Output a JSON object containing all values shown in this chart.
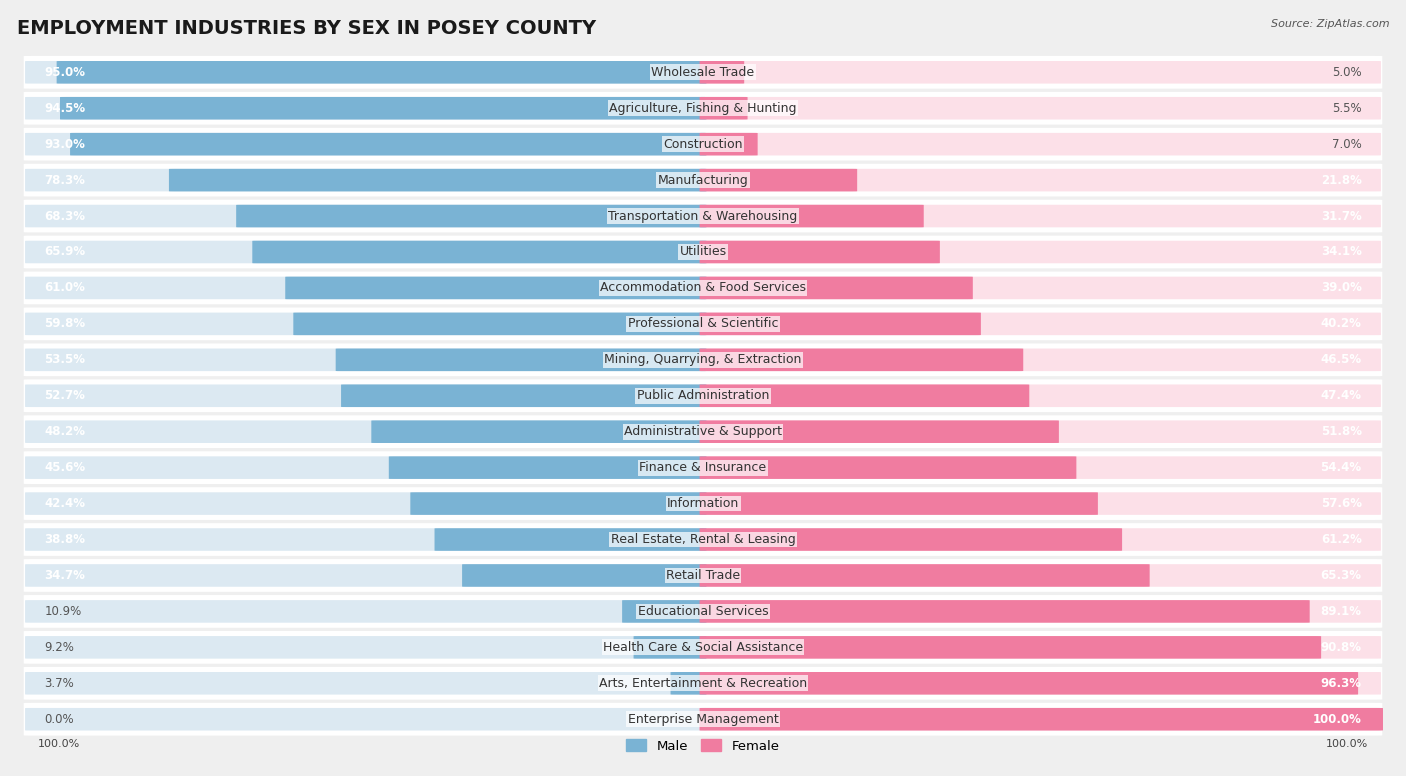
{
  "title": "EMPLOYMENT INDUSTRIES BY SEX IN POSEY COUNTY",
  "source": "Source: ZipAtlas.com",
  "industries": [
    {
      "name": "Wholesale Trade",
      "male": 95.0,
      "female": 5.0
    },
    {
      "name": "Agriculture, Fishing & Hunting",
      "male": 94.5,
      "female": 5.5
    },
    {
      "name": "Construction",
      "male": 93.0,
      "female": 7.0
    },
    {
      "name": "Manufacturing",
      "male": 78.3,
      "female": 21.8
    },
    {
      "name": "Transportation & Warehousing",
      "male": 68.3,
      "female": 31.7
    },
    {
      "name": "Utilities",
      "male": 65.9,
      "female": 34.1
    },
    {
      "name": "Accommodation & Food Services",
      "male": 61.0,
      "female": 39.0
    },
    {
      "name": "Professional & Scientific",
      "male": 59.8,
      "female": 40.2
    },
    {
      "name": "Mining, Quarrying, & Extraction",
      "male": 53.5,
      "female": 46.5
    },
    {
      "name": "Public Administration",
      "male": 52.7,
      "female": 47.4
    },
    {
      "name": "Administrative & Support",
      "male": 48.2,
      "female": 51.8
    },
    {
      "name": "Finance & Insurance",
      "male": 45.6,
      "female": 54.4
    },
    {
      "name": "Information",
      "male": 42.4,
      "female": 57.6
    },
    {
      "name": "Real Estate, Rental & Leasing",
      "male": 38.8,
      "female": 61.2
    },
    {
      "name": "Retail Trade",
      "male": 34.7,
      "female": 65.3
    },
    {
      "name": "Educational Services",
      "male": 10.9,
      "female": 89.1
    },
    {
      "name": "Health Care & Social Assistance",
      "male": 9.2,
      "female": 90.8
    },
    {
      "name": "Arts, Entertainment & Recreation",
      "male": 3.7,
      "female": 96.3
    },
    {
      "name": "Enterprise Management",
      "male": 0.0,
      "female": 100.0
    }
  ],
  "male_color": "#7ab3d4",
  "female_color": "#f07ca0",
  "bg_color": "#efefef",
  "row_bg_color": "#ffffff",
  "bar_bg_left": "#dce9f2",
  "bar_bg_right": "#fce0e8",
  "title_fontsize": 14,
  "label_fontsize": 9,
  "pct_fontsize": 8.5,
  "axis_label_fontsize": 8
}
